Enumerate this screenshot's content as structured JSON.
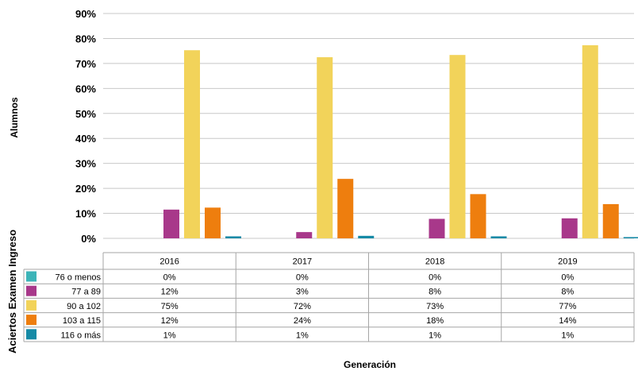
{
  "chart_data": {
    "type": "bar",
    "xlabel": "Generación",
    "ylabel": "Alumnos",
    "table_label": "Aciertos Examen Ingreso",
    "ylim": [
      0,
      90
    ],
    "yticks": [
      0,
      10,
      20,
      30,
      40,
      50,
      60,
      70,
      80,
      90
    ],
    "ytick_labels": [
      "0%",
      "10%",
      "20%",
      "30%",
      "40%",
      "50%",
      "60%",
      "70%",
      "80%",
      "90%"
    ],
    "grid": true,
    "legend": "table-below",
    "categories": [
      "2016",
      "2017",
      "2018",
      "2019"
    ],
    "series": [
      {
        "name": "76 o menos",
        "color": "#3cb4b8",
        "values": [
          0,
          0,
          0,
          0
        ],
        "labels": [
          "0%",
          "0%",
          "0%",
          "0%"
        ]
      },
      {
        "name": "77 a 89",
        "color": "#a8388a",
        "values": [
          11.5,
          2.5,
          7.8,
          8.0
        ],
        "labels": [
          "12%",
          "3%",
          "8%",
          "8%"
        ]
      },
      {
        "name": "90 a 102",
        "color": "#f2d35a",
        "values": [
          75.3,
          72.5,
          73.4,
          77.3
        ],
        "labels": [
          "75%",
          "72%",
          "73%",
          "77%"
        ]
      },
      {
        "name": "103 a 115",
        "color": "#ee7e0e",
        "values": [
          12.3,
          23.8,
          17.7,
          13.7
        ],
        "labels": [
          "12%",
          "24%",
          "18%",
          "14%"
        ]
      },
      {
        "name": "116 o más",
        "color": "#168aa6",
        "values": [
          0.8,
          1.0,
          0.8,
          0.5
        ],
        "labels": [
          "1%",
          "1%",
          "1%",
          "1%"
        ]
      }
    ]
  }
}
